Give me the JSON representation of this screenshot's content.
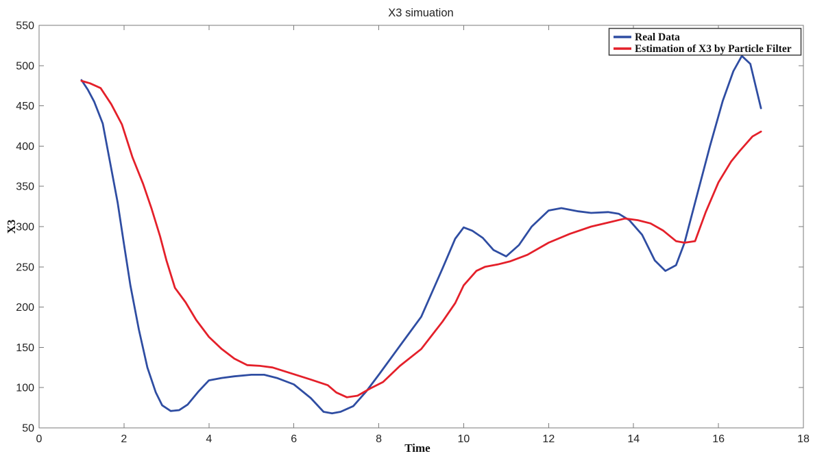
{
  "chart_data": {
    "type": "line",
    "title": "X3 simuation",
    "xlabel": "Time",
    "ylabel": "X3",
    "xlim": [
      0,
      18
    ],
    "ylim": [
      50,
      550
    ],
    "xticks": [
      0,
      2,
      4,
      6,
      8,
      10,
      12,
      14,
      16,
      18
    ],
    "yticks": [
      50,
      100,
      150,
      200,
      250,
      300,
      350,
      400,
      450,
      500,
      550
    ],
    "grid": false,
    "legend_position": "top-right",
    "axis_color": "#7a7a7a",
    "background_color": "#ffffff",
    "series": [
      {
        "name": "Real Data",
        "color": "#2f4da2",
        "line_width": 2.8,
        "points": [
          [
            1.0,
            482
          ],
          [
            1.15,
            470
          ],
          [
            1.3,
            455
          ],
          [
            1.5,
            428
          ],
          [
            1.65,
            386
          ],
          [
            1.85,
            330
          ],
          [
            2.0,
            278
          ],
          [
            2.15,
            227
          ],
          [
            2.35,
            172
          ],
          [
            2.55,
            125
          ],
          [
            2.75,
            94
          ],
          [
            2.9,
            78
          ],
          [
            3.1,
            71
          ],
          [
            3.3,
            72
          ],
          [
            3.5,
            79
          ],
          [
            3.75,
            95
          ],
          [
            4.0,
            109
          ],
          [
            4.3,
            112
          ],
          [
            4.6,
            114
          ],
          [
            5.0,
            116
          ],
          [
            5.3,
            116
          ],
          [
            5.6,
            112
          ],
          [
            6.0,
            104
          ],
          [
            6.4,
            87
          ],
          [
            6.7,
            70
          ],
          [
            6.9,
            68
          ],
          [
            7.1,
            70
          ],
          [
            7.4,
            77
          ],
          [
            7.7,
            95
          ],
          [
            8.0,
            116
          ],
          [
            8.5,
            152
          ],
          [
            9.0,
            188
          ],
          [
            9.5,
            248
          ],
          [
            9.8,
            285
          ],
          [
            10.0,
            299
          ],
          [
            10.2,
            295
          ],
          [
            10.45,
            286
          ],
          [
            10.7,
            271
          ],
          [
            11.0,
            263
          ],
          [
            11.3,
            277
          ],
          [
            11.6,
            300
          ],
          [
            12.0,
            320
          ],
          [
            12.3,
            323
          ],
          [
            12.7,
            319
          ],
          [
            13.0,
            317
          ],
          [
            13.4,
            318
          ],
          [
            13.65,
            316
          ],
          [
            13.9,
            308
          ],
          [
            14.2,
            290
          ],
          [
            14.5,
            258
          ],
          [
            14.75,
            245
          ],
          [
            15.0,
            252
          ],
          [
            15.2,
            280
          ],
          [
            15.5,
            340
          ],
          [
            15.8,
            400
          ],
          [
            16.1,
            456
          ],
          [
            16.35,
            493
          ],
          [
            16.55,
            512
          ],
          [
            16.75,
            502
          ],
          [
            17.0,
            447
          ]
        ]
      },
      {
        "name": "Estimation of X3 by Particle Filter",
        "color": "#e4202a",
        "line_width": 2.8,
        "points": [
          [
            1.0,
            481
          ],
          [
            1.2,
            478
          ],
          [
            1.45,
            472
          ],
          [
            1.7,
            452
          ],
          [
            1.95,
            427
          ],
          [
            2.2,
            386
          ],
          [
            2.45,
            353
          ],
          [
            2.65,
            322
          ],
          [
            2.85,
            288
          ],
          [
            3.0,
            258
          ],
          [
            3.2,
            224
          ],
          [
            3.45,
            206
          ],
          [
            3.7,
            184
          ],
          [
            4.0,
            163
          ],
          [
            4.3,
            148
          ],
          [
            4.6,
            136
          ],
          [
            4.9,
            128
          ],
          [
            5.2,
            127
          ],
          [
            5.5,
            125
          ],
          [
            5.8,
            120
          ],
          [
            6.1,
            115
          ],
          [
            6.4,
            110
          ],
          [
            6.8,
            103
          ],
          [
            7.0,
            94
          ],
          [
            7.25,
            88
          ],
          [
            7.5,
            90
          ],
          [
            7.8,
            99
          ],
          [
            8.1,
            107
          ],
          [
            8.5,
            127
          ],
          [
            9.0,
            148
          ],
          [
            9.5,
            182
          ],
          [
            9.8,
            205
          ],
          [
            10.0,
            227
          ],
          [
            10.3,
            245
          ],
          [
            10.5,
            250
          ],
          [
            10.8,
            253
          ],
          [
            11.1,
            257
          ],
          [
            11.5,
            265
          ],
          [
            12.0,
            280
          ],
          [
            12.5,
            291
          ],
          [
            13.0,
            300
          ],
          [
            13.4,
            305
          ],
          [
            13.8,
            310
          ],
          [
            14.1,
            308
          ],
          [
            14.4,
            304
          ],
          [
            14.7,
            295
          ],
          [
            15.0,
            282
          ],
          [
            15.2,
            280
          ],
          [
            15.45,
            282
          ],
          [
            15.7,
            318
          ],
          [
            16.0,
            355
          ],
          [
            16.3,
            381
          ],
          [
            16.5,
            394
          ],
          [
            16.8,
            412
          ],
          [
            17.0,
            418
          ]
        ]
      }
    ]
  }
}
